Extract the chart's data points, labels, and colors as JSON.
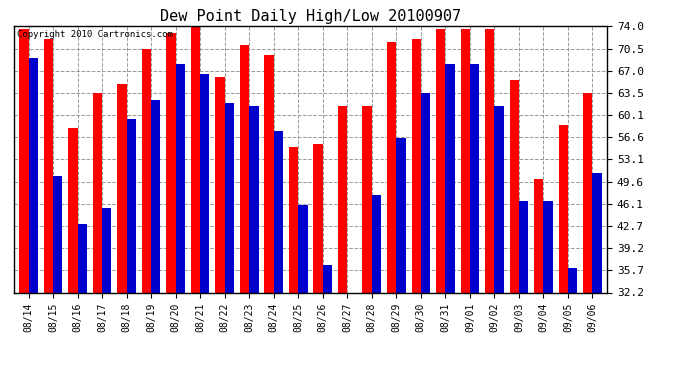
{
  "title": "Dew Point Daily High/Low 20100907",
  "copyright": "Copyright 2010 Cartronics.com",
  "dates": [
    "08/14",
    "08/15",
    "08/16",
    "08/17",
    "08/18",
    "08/19",
    "08/20",
    "08/21",
    "08/22",
    "08/23",
    "08/24",
    "08/25",
    "08/26",
    "08/27",
    "08/28",
    "08/29",
    "08/30",
    "08/31",
    "09/01",
    "09/02",
    "09/03",
    "09/04",
    "09/05",
    "09/06"
  ],
  "highs": [
    73.5,
    72.0,
    58.0,
    63.5,
    65.0,
    70.5,
    73.0,
    74.5,
    66.0,
    71.0,
    69.5,
    55.0,
    55.5,
    61.5,
    61.5,
    71.5,
    72.0,
    73.5,
    73.5,
    73.5,
    65.5,
    50.0,
    58.5,
    63.5
  ],
  "lows": [
    69.0,
    50.5,
    43.0,
    45.5,
    59.5,
    62.5,
    68.0,
    66.5,
    62.0,
    61.5,
    57.5,
    46.0,
    36.5,
    32.2,
    47.5,
    56.5,
    63.5,
    68.0,
    68.0,
    61.5,
    46.5,
    46.5,
    36.0,
    51.0
  ],
  "high_color": "#ff0000",
  "low_color": "#0000cc",
  "bg_color": "#ffffff",
  "plot_bg_color": "#ffffff",
  "grid_color": "#999999",
  "yticks": [
    32.2,
    35.7,
    39.2,
    42.7,
    46.1,
    49.6,
    53.1,
    56.6,
    60.1,
    63.5,
    67.0,
    70.5,
    74.0
  ],
  "ymin": 32.2,
  "ymax": 74.0,
  "bar_width": 0.38
}
